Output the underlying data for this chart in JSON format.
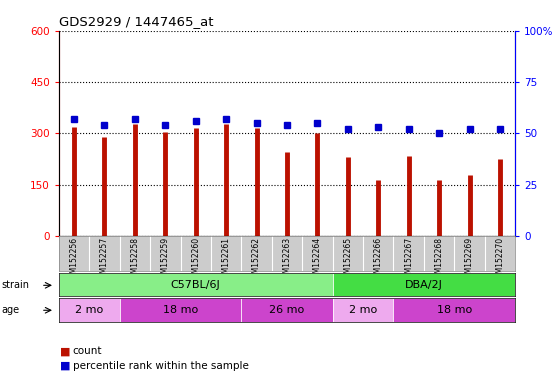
{
  "title": "GDS2929 / 1447465_at",
  "samples": [
    "GSM152256",
    "GSM152257",
    "GSM152258",
    "GSM152259",
    "GSM152260",
    "GSM152261",
    "GSM152262",
    "GSM152263",
    "GSM152264",
    "GSM152265",
    "GSM152266",
    "GSM152267",
    "GSM152268",
    "GSM152269",
    "GSM152270"
  ],
  "counts": [
    320,
    290,
    328,
    305,
    315,
    328,
    315,
    245,
    300,
    230,
    165,
    235,
    163,
    180,
    225
  ],
  "percentiles": [
    57,
    54,
    57,
    54,
    56,
    57,
    55,
    54,
    55,
    52,
    53,
    52,
    50,
    52,
    52
  ],
  "bar_color": "#bb1100",
  "dot_color": "#0000cc",
  "label_bg": "#cccccc",
  "strain_c57_color": "#88ee88",
  "strain_dba_color": "#44dd44",
  "age_light_color": "#eeaaee",
  "age_dark_color": "#cc44cc",
  "age_groups": [
    {
      "label": "2 mo",
      "start": 0,
      "end": 1,
      "light": true
    },
    {
      "label": "18 mo",
      "start": 2,
      "end": 5,
      "light": false
    },
    {
      "label": "26 mo",
      "start": 6,
      "end": 8,
      "light": false
    },
    {
      "label": "2 mo",
      "start": 9,
      "end": 10,
      "light": true
    },
    {
      "label": "18 mo",
      "start": 11,
      "end": 14,
      "light": false
    }
  ],
  "legend_red": "count",
  "legend_blue": "percentile rank within the sample"
}
